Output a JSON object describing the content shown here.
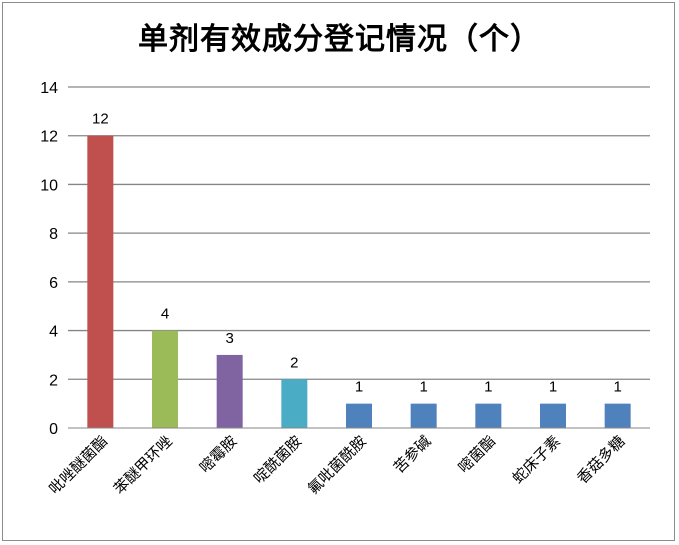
{
  "chart_data": {
    "type": "bar",
    "title": "单剂有效成分登记情况（个）",
    "categories": [
      "吡唑醚菌酯",
      "苯醚甲环唑",
      "嘧霉胺",
      "啶酰菌胺",
      "氟吡菌酰胺",
      "苦参碱",
      "嘧菌酯",
      "蛇床子素",
      "香菇多糖"
    ],
    "values": [
      12,
      4,
      3,
      2,
      1,
      1,
      1,
      1,
      1
    ],
    "colors": [
      "#c0504d",
      "#9bbb59",
      "#8064a2",
      "#4bacc6",
      "#4f81bd",
      "#4f81bd",
      "#4f81bd",
      "#4f81bd",
      "#4f81bd"
    ],
    "ylim": [
      0,
      14
    ],
    "yticks": [
      0,
      2,
      4,
      6,
      8,
      10,
      12,
      14
    ],
    "grid": true,
    "legend": "none",
    "xlabel": "",
    "ylabel": ""
  }
}
